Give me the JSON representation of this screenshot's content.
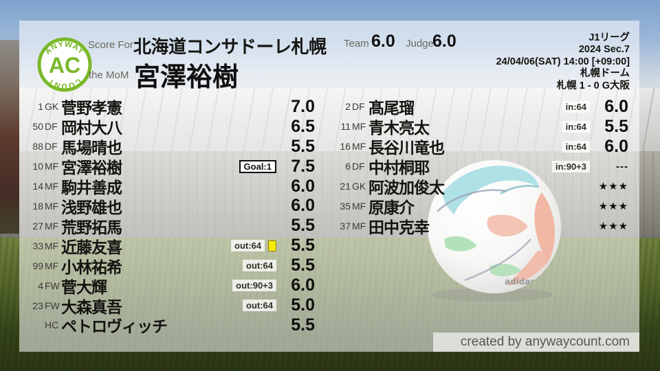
{
  "header": {
    "logo": {
      "top": "ANYWAY",
      "center": "AC",
      "bottom": "COUNT"
    },
    "score_for_label": "Score For",
    "team_name": "北海道コンサドーレ札幌",
    "mom_label": "the MoM",
    "mom_name": "宮澤裕樹",
    "team_score_label": "Team",
    "team_score": "6.0",
    "judge_score_label": "Judge",
    "judge_score": "6.0",
    "match_info": [
      "J1リーグ",
      "2024 Sec.7",
      "24/04/06(SAT) 14:00 [+09:00]",
      "札幌ドーム",
      "札幌 1 - 0 G大阪"
    ]
  },
  "left_column": [
    {
      "number": "1",
      "pos": "GK",
      "name": "菅野孝憲",
      "score": "7.0"
    },
    {
      "number": "50",
      "pos": "DF",
      "name": "岡村大八",
      "score": "6.5"
    },
    {
      "number": "88",
      "pos": "DF",
      "name": "馬場晴也",
      "score": "5.5"
    },
    {
      "number": "10",
      "pos": "MF",
      "name": "宮澤裕樹",
      "score": "7.5",
      "badge": "Goal:1",
      "badge_type": "goal"
    },
    {
      "number": "14",
      "pos": "MF",
      "name": "駒井善成",
      "score": "6.0"
    },
    {
      "number": "18",
      "pos": "MF",
      "name": "浅野雄也",
      "score": "6.0"
    },
    {
      "number": "27",
      "pos": "MF",
      "name": "荒野拓馬",
      "score": "5.5"
    },
    {
      "number": "33",
      "pos": "MF",
      "name": "近藤友喜",
      "score": "5.5",
      "badge": "out:64",
      "badge_type": "sub",
      "yellow_card": true
    },
    {
      "number": "99",
      "pos": "MF",
      "name": "小林祐希",
      "score": "5.5",
      "badge": "out:64",
      "badge_type": "sub"
    },
    {
      "number": "4",
      "pos": "FW",
      "name": "菅大輝",
      "score": "6.0",
      "badge": "out:90+3",
      "badge_type": "sub"
    },
    {
      "number": "23",
      "pos": "FW",
      "name": "大森真吾",
      "score": "5.0",
      "badge": "out:64",
      "badge_type": "sub"
    },
    {
      "number": "",
      "pos": "HC",
      "name": "ペトロヴィッチ",
      "score": "5.5"
    }
  ],
  "right_column": [
    {
      "number": "2",
      "pos": "DF",
      "name": "髙尾瑠",
      "score": "6.0",
      "badge": "in:64",
      "badge_type": "sub"
    },
    {
      "number": "11",
      "pos": "MF",
      "name": "青木亮太",
      "score": "5.5",
      "badge": "in:64",
      "badge_type": "sub"
    },
    {
      "number": "16",
      "pos": "MF",
      "name": "長谷川竜也",
      "score": "6.0",
      "badge": "in:64",
      "badge_type": "sub"
    },
    {
      "number": "6",
      "pos": "DF",
      "name": "中村桐耶",
      "score": "---",
      "badge": "in:90+3",
      "badge_type": "sub"
    },
    {
      "number": "21",
      "pos": "GK",
      "name": "阿波加俊太",
      "score": "★★★"
    },
    {
      "number": "35",
      "pos": "MF",
      "name": "原康介",
      "score": "★★★"
    },
    {
      "number": "37",
      "pos": "MF",
      "name": "田中克幸",
      "score": "★★★"
    }
  ],
  "footer": {
    "credit": "created by anywaycount.com"
  },
  "colors": {
    "accent_green": "#79b829",
    "yellow_card": "#f6ea0a",
    "text_dark": "#131310",
    "label_gray": "#6a685f"
  },
  "chart_data": {
    "type": "table",
    "title": "Score For 北海道コンサドーレ札幌 / the MoM 宮澤裕樹",
    "team_score": 6.0,
    "judge_score": 6.0,
    "match": {
      "competition": "J1リーグ",
      "season_section": "2024 Sec.7",
      "kickoff": "24/04/06(SAT) 14:00 [+09:00]",
      "venue": "札幌ドーム",
      "result": "札幌 1 - 0 G大阪"
    },
    "columns": [
      "number",
      "position",
      "player",
      "event",
      "score"
    ],
    "rows": [
      [
        "1",
        "GK",
        "菅野孝憲",
        "",
        "7.0"
      ],
      [
        "50",
        "DF",
        "岡村大八",
        "",
        "6.5"
      ],
      [
        "88",
        "DF",
        "馬場晴也",
        "",
        "5.5"
      ],
      [
        "10",
        "MF",
        "宮澤裕樹",
        "Goal:1",
        "7.5"
      ],
      [
        "14",
        "MF",
        "駒井善成",
        "",
        "6.0"
      ],
      [
        "18",
        "MF",
        "浅野雄也",
        "",
        "6.0"
      ],
      [
        "27",
        "MF",
        "荒野拓馬",
        "",
        "5.5"
      ],
      [
        "33",
        "MF",
        "近藤友喜",
        "out:64 yellow-card",
        "5.5"
      ],
      [
        "99",
        "MF",
        "小林祐希",
        "out:64",
        "5.5"
      ],
      [
        "4",
        "FW",
        "菅大輝",
        "out:90+3",
        "6.0"
      ],
      [
        "23",
        "FW",
        "大森真吾",
        "out:64",
        "5.0"
      ],
      [
        "",
        "HC",
        "ペトロヴィッチ",
        "",
        "5.5"
      ],
      [
        "2",
        "DF",
        "髙尾瑠",
        "in:64",
        "6.0"
      ],
      [
        "11",
        "MF",
        "青木亮太",
        "in:64",
        "5.5"
      ],
      [
        "16",
        "MF",
        "長谷川竜也",
        "in:64",
        "6.0"
      ],
      [
        "6",
        "DF",
        "中村桐耶",
        "in:90+3",
        "---"
      ],
      [
        "21",
        "GK",
        "阿波加俊太",
        "",
        "★★★"
      ],
      [
        "35",
        "MF",
        "原康介",
        "",
        "★★★"
      ],
      [
        "37",
        "MF",
        "田中克幸",
        "",
        "★★★"
      ]
    ]
  }
}
